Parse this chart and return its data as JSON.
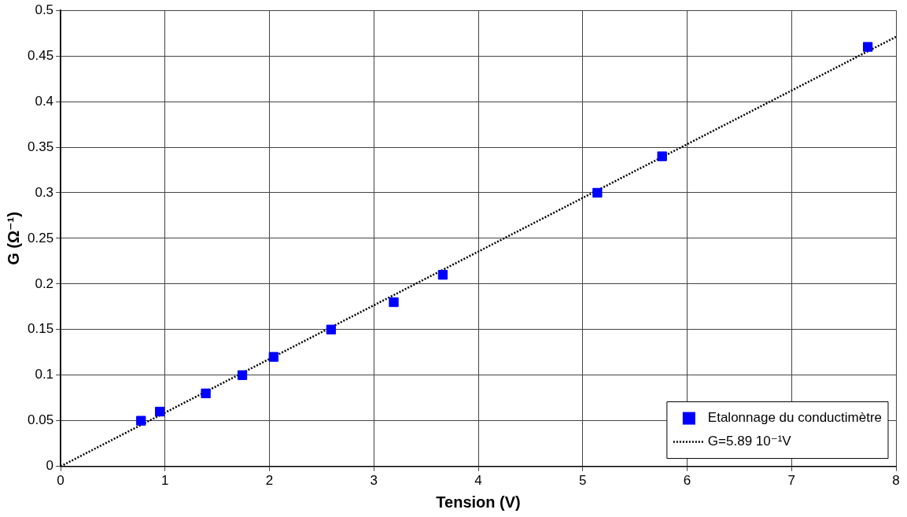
{
  "chart_data": {
    "type": "scatter",
    "xlabel": "Tension (V)",
    "ylabel": "G (Ω⁻¹)",
    "xlim": [
      0,
      8
    ],
    "ylim": [
      0,
      0.5
    ],
    "xticks": [
      0,
      1,
      2,
      3,
      4,
      5,
      6,
      7,
      8
    ],
    "yticks": [
      0,
      0.05,
      0.1,
      0.15,
      0.2,
      0.25,
      0.3,
      0.35,
      0.4,
      0.45,
      0.5
    ],
    "grid": true,
    "legend": "bottom right",
    "marker": "square",
    "series": [
      {
        "name": "Etalonnage du conductimètre",
        "color": "#0000ff",
        "x": [
          0.77,
          0.95,
          1.39,
          1.74,
          2.04,
          2.59,
          3.19,
          3.66,
          5.14,
          5.76,
          7.73
        ],
        "values": [
          0.05,
          0.06,
          0.08,
          0.1,
          0.12,
          0.15,
          0.18,
          0.21,
          0.3,
          0.34,
          0.46
        ]
      },
      {
        "name": "G=5.89 10⁻¹V",
        "type": "line",
        "color": "#000000",
        "line_style": "dotted",
        "marker": "none",
        "x": [
          0,
          8
        ],
        "values": [
          0,
          0.471
        ]
      }
    ]
  }
}
